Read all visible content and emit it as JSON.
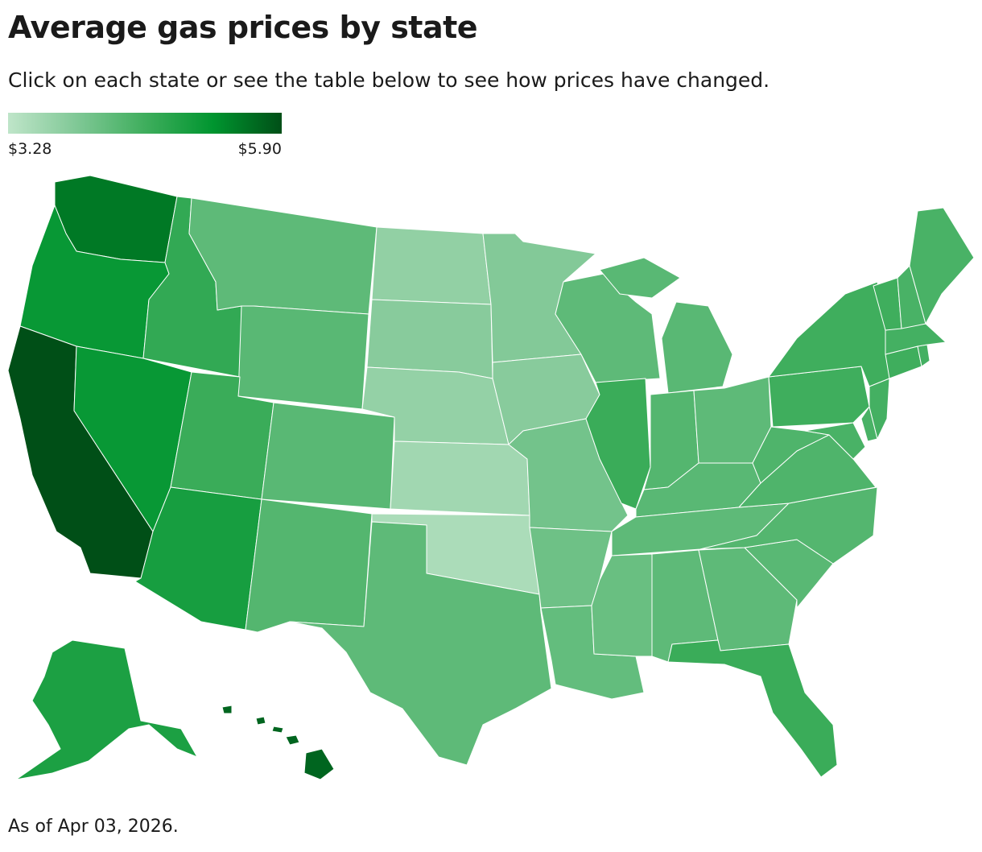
{
  "header": {
    "title": "Average gas prices by state",
    "subtitle": "Click on each state or see the table below to see how prices have changed."
  },
  "legend": {
    "min_label": "$3.28",
    "max_label": "$5.90",
    "gradient": [
      "#bfe5c9",
      "#80c896",
      "#3fae5d",
      "#00952f",
      "#004f17"
    ]
  },
  "map": {
    "states": [
      {
        "id": "WA",
        "level": 0.85
      },
      {
        "id": "OR",
        "level": 0.72
      },
      {
        "id": "CA",
        "level": 1.0
      },
      {
        "id": "ID",
        "level": 0.55
      },
      {
        "id": "NV",
        "level": 0.72
      },
      {
        "id": "MT",
        "level": 0.38
      },
      {
        "id": "WY",
        "level": 0.4
      },
      {
        "id": "UT",
        "level": 0.52
      },
      {
        "id": "AZ",
        "level": 0.66
      },
      {
        "id": "CO",
        "level": 0.4
      },
      {
        "id": "NM",
        "level": 0.42
      },
      {
        "id": "ND",
        "level": 0.18
      },
      {
        "id": "SD",
        "level": 0.22
      },
      {
        "id": "NE",
        "level": 0.17
      },
      {
        "id": "KS",
        "level": 0.12
      },
      {
        "id": "OK",
        "level": 0.08
      },
      {
        "id": "TX",
        "level": 0.38
      },
      {
        "id": "MN",
        "level": 0.24
      },
      {
        "id": "IA",
        "level": 0.22
      },
      {
        "id": "MO",
        "level": 0.3
      },
      {
        "id": "AR",
        "level": 0.32
      },
      {
        "id": "LA",
        "level": 0.36
      },
      {
        "id": "WI",
        "level": 0.38
      },
      {
        "id": "IL",
        "level": 0.52
      },
      {
        "id": "MI",
        "level": 0.4
      },
      {
        "id": "IN",
        "level": 0.42
      },
      {
        "id": "OH",
        "level": 0.38
      },
      {
        "id": "KY",
        "level": 0.4
      },
      {
        "id": "TN",
        "level": 0.38
      },
      {
        "id": "MS",
        "level": 0.34
      },
      {
        "id": "AL",
        "level": 0.38
      },
      {
        "id": "GA",
        "level": 0.38
      },
      {
        "id": "FL",
        "level": 0.52
      },
      {
        "id": "SC",
        "level": 0.4
      },
      {
        "id": "NC",
        "level": 0.42
      },
      {
        "id": "VA",
        "level": 0.44
      },
      {
        "id": "WV",
        "level": 0.44
      },
      {
        "id": "PA",
        "level": 0.5
      },
      {
        "id": "NY",
        "level": 0.5
      },
      {
        "id": "MD",
        "level": 0.46
      },
      {
        "id": "DE",
        "level": 0.46
      },
      {
        "id": "NJ",
        "level": 0.48
      },
      {
        "id": "CT",
        "level": 0.5
      },
      {
        "id": "RI",
        "level": 0.48
      },
      {
        "id": "MA",
        "level": 0.48
      },
      {
        "id": "VT",
        "level": 0.5
      },
      {
        "id": "NH",
        "level": 0.46
      },
      {
        "id": "ME",
        "level": 0.46
      },
      {
        "id": "AK",
        "level": 0.64
      },
      {
        "id": "HI",
        "level": 0.92
      }
    ]
  },
  "footer": {
    "note": "As of Apr 03, 2026."
  }
}
